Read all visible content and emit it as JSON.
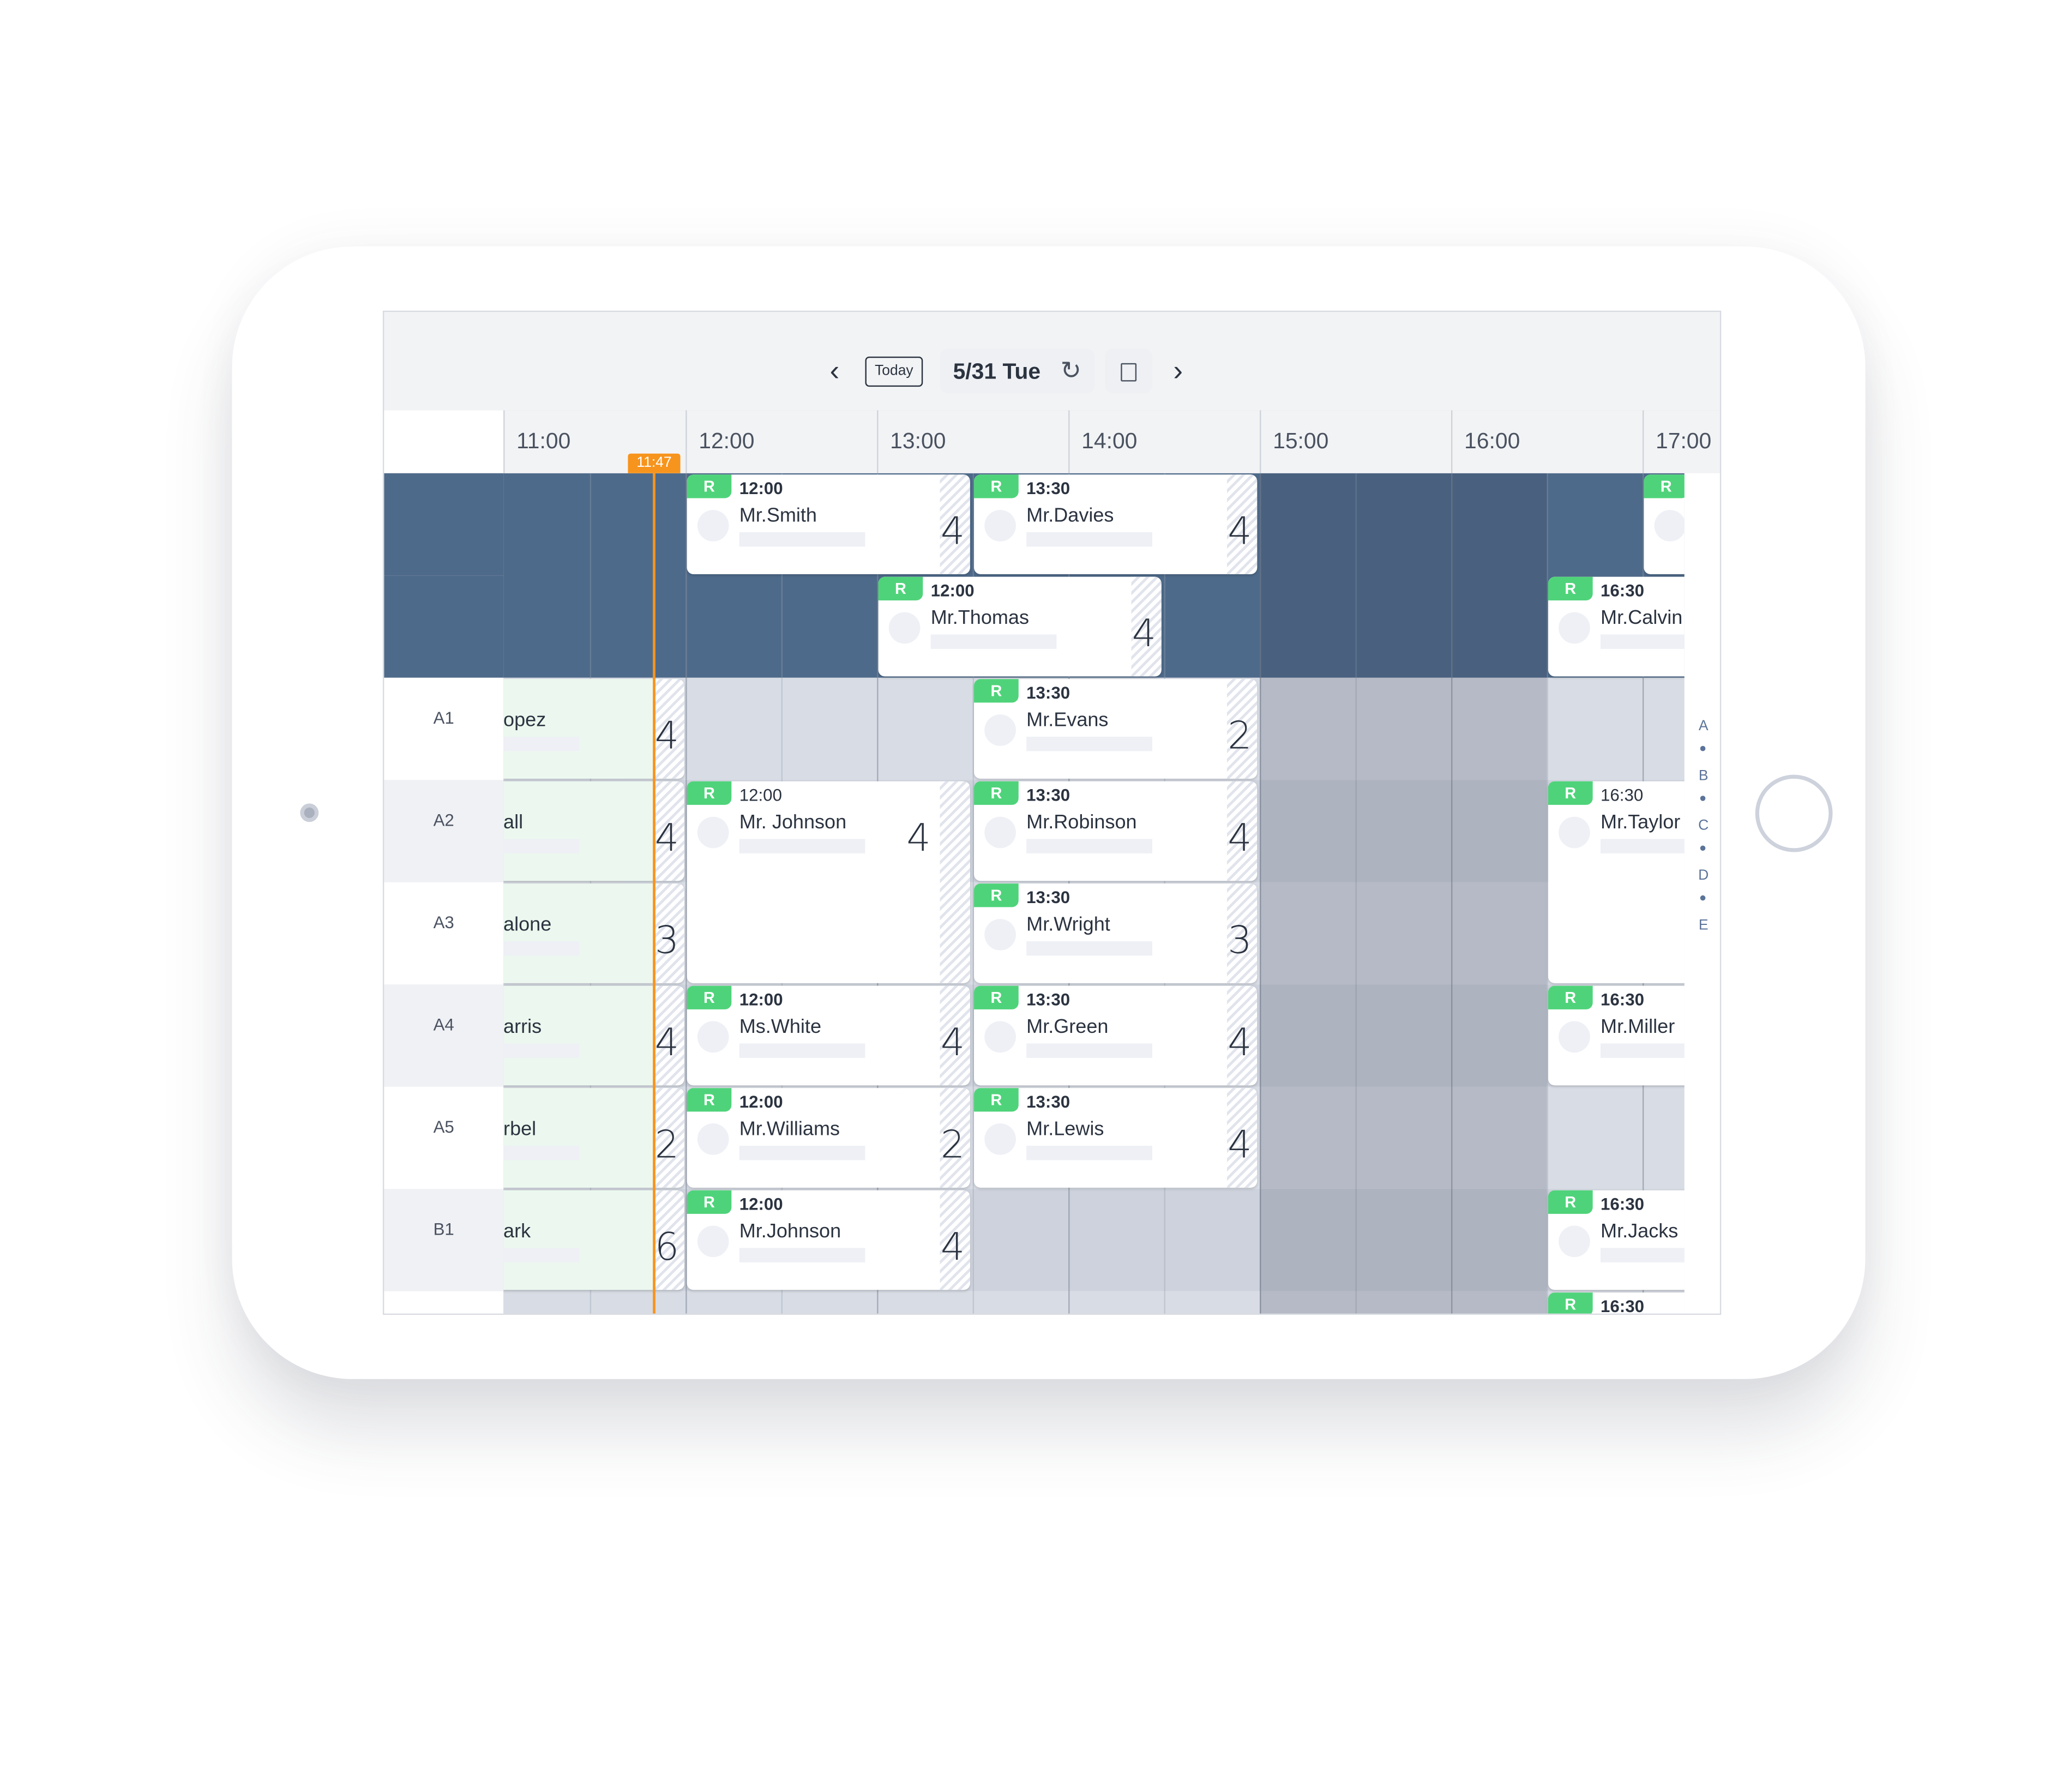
{
  "header": {
    "prev_icon": "chevron-left-icon",
    "today_label": "Today",
    "date_label": "5/31 Tue",
    "refresh_icon": "refresh-icon",
    "note_icon": "note-icon",
    "next_icon": "chevron-right-icon"
  },
  "timeline": {
    "hours": [
      "11:00",
      "12:00",
      "13:00",
      "14:00",
      "15:00",
      "16:00",
      "17:00"
    ],
    "current_time": "11:47",
    "current_time_color": "#f7941d"
  },
  "rows": [
    "",
    "",
    "A1",
    "A2",
    "A3",
    "A4",
    "A5",
    "B1",
    ""
  ],
  "colors": {
    "badge": "#4fd37a",
    "top_section": "#4e6a8a",
    "past_card": "#ecf8ef"
  },
  "past_cards": [
    {
      "name": "opez",
      "guests": "4"
    },
    {
      "name": "all",
      "guests": "4"
    },
    {
      "name": "alone",
      "guests": "3"
    },
    {
      "name": "arris",
      "guests": "4"
    },
    {
      "name": "rbel",
      "guests": "2"
    },
    {
      "name": "ark",
      "guests": "6"
    }
  ],
  "reservations": [
    {
      "badge": "R",
      "time": "12:00",
      "name": "Mr.Smith",
      "guests": "4"
    },
    {
      "badge": "R",
      "time": "13:30",
      "name": "Mr.Davies",
      "guests": "4"
    },
    {
      "badge": "R",
      "time": "",
      "name": "",
      "guests": ""
    },
    {
      "badge": "R",
      "time": "12:00",
      "name": "Mr.Thomas",
      "guests": "4"
    },
    {
      "badge": "R",
      "time": "16:30",
      "name": "Mr.Calvin",
      "guests": ""
    },
    {
      "badge": "R",
      "time": "13:30",
      "name": "Mr.Evans",
      "guests": "2"
    },
    {
      "badge": "R",
      "time": "12:00",
      "name": "Mr. Johnson",
      "guests": "4"
    },
    {
      "badge": "R",
      "time": "13:30",
      "name": "Mr.Robinson",
      "guests": "4"
    },
    {
      "badge": "R",
      "time": "16:30",
      "name": "Mr.Taylor",
      "guests": ""
    },
    {
      "badge": "R",
      "time": "13:30",
      "name": "Mr.Wright",
      "guests": "3"
    },
    {
      "badge": "R",
      "time": "12:00",
      "name": "Ms.White",
      "guests": "4"
    },
    {
      "badge": "R",
      "time": "13:30",
      "name": "Mr.Green",
      "guests": "4"
    },
    {
      "badge": "R",
      "time": "16:30",
      "name": "Mr.Miller",
      "guests": ""
    },
    {
      "badge": "R",
      "time": "12:00",
      "name": "Mr.Williams",
      "guests": "2"
    },
    {
      "badge": "R",
      "time": "13:30",
      "name": "Mr.Lewis",
      "guests": "4"
    },
    {
      "badge": "R",
      "time": "12:00",
      "name": "Mr.Johnson",
      "guests": "4"
    },
    {
      "badge": "R",
      "time": "16:30",
      "name": "Mr.Jacks",
      "guests": ""
    },
    {
      "badge": "R",
      "time": "16:30",
      "name": "",
      "guests": ""
    }
  ],
  "section_index": [
    "A",
    "B",
    "C",
    "D",
    "E"
  ]
}
